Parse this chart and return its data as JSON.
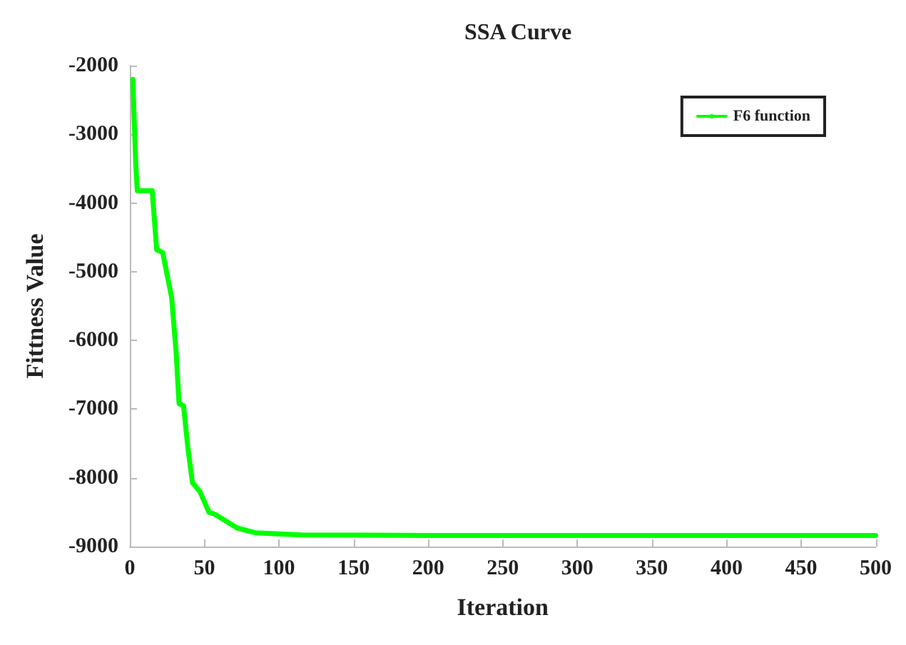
{
  "chart_data": {
    "type": "line",
    "title": "SSA Curve",
    "xlabel": "Iteration",
    "ylabel": "Fittness Value",
    "x": [
      2,
      4,
      5,
      15,
      18,
      22,
      28,
      31,
      33,
      36,
      39,
      42,
      47,
      53,
      57,
      72,
      84,
      115,
      200,
      500
    ],
    "series": [
      {
        "name": "F6 function",
        "color": "#00ff00",
        "values": [
          -2200,
          -3450,
          -3820,
          -3820,
          -4680,
          -4720,
          -5370,
          -6160,
          -6920,
          -6950,
          -7580,
          -8070,
          -8200,
          -8500,
          -8530,
          -8730,
          -8800,
          -8830,
          -8840,
          -8840
        ]
      }
    ],
    "xlim": [
      0,
      500
    ],
    "xticks": [
      0,
      50,
      100,
      150,
      200,
      250,
      300,
      350,
      400,
      450,
      500
    ],
    "ylim": [
      -9000,
      -2000
    ],
    "yticks": [
      -9000,
      -8000,
      -7000,
      -6000,
      -5000,
      -4000,
      -3000,
      -2000
    ],
    "grid": false,
    "legend": "top right",
    "marker": "none",
    "line_style": "solid"
  }
}
